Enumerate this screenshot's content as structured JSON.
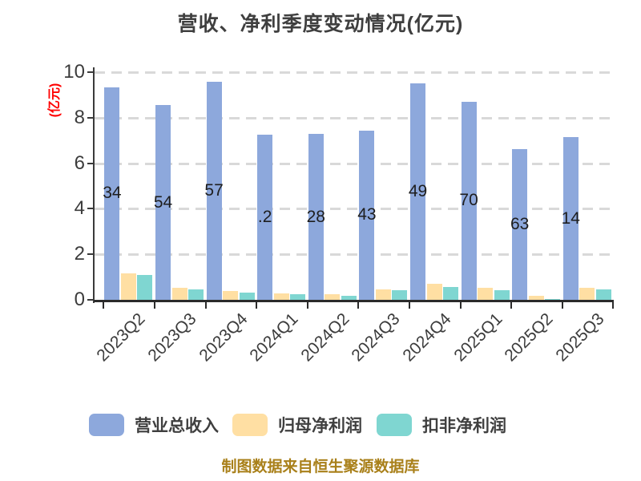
{
  "title": "营收、净利季度变动情况(亿元)",
  "y_axis_unit": "(亿元)",
  "footer": "制图数据来自恒生聚源数据库",
  "colors": {
    "revenue": "#8da8dc",
    "net_profit": "#ffdfa3",
    "non_gaap_profit": "#7fd6d1",
    "grid": "#d9d9d9",
    "axis": "#333333",
    "text": "#3f3f3f",
    "unit_label": "#ff0000",
    "footer_text": "#a9801a"
  },
  "chart_data": {
    "type": "bar",
    "title": "营收、净利季度变动情况(亿元)",
    "ylabel": "(亿元)",
    "categories": [
      "2023Q2",
      "2023Q3",
      "2023Q4",
      "2024Q1",
      "2024Q2",
      "2024Q3",
      "2024Q4",
      "2025Q1",
      "2025Q2",
      "2025Q3"
    ],
    "series": [
      {
        "name": "营业总收入",
        "color": "#8da8dc",
        "values": [
          9.34,
          8.54,
          9.57,
          7.25,
          7.28,
          7.43,
          9.49,
          8.7,
          6.63,
          7.14
        ],
        "bar_label_fragments_visible": [
          "34",
          "54",
          "57",
          ".2",
          "28",
          "43",
          "49",
          "70",
          "63",
          "14"
        ]
      },
      {
        "name": "归母净利润",
        "color": "#ffdfa3",
        "values": [
          1.15,
          0.52,
          0.38,
          0.28,
          0.25,
          0.47,
          0.72,
          0.52,
          0.16,
          0.54
        ]
      },
      {
        "name": "扣非净利润",
        "color": "#7fd6d1",
        "values": [
          1.1,
          0.47,
          0.32,
          0.24,
          0.18,
          0.41,
          0.57,
          0.44,
          0.05,
          0.46
        ]
      }
    ],
    "yticks": [
      0,
      2,
      4,
      6,
      8,
      10
    ],
    "ylim": [
      0,
      10
    ],
    "grid": "horizontal-dashed",
    "legend_position": "bottom"
  },
  "legend": {
    "items": [
      {
        "label": "营业总收入",
        "color": "#8da8dc"
      },
      {
        "label": "归母净利润",
        "color": "#ffdfa3"
      },
      {
        "label": "扣非净利润",
        "color": "#7fd6d1"
      }
    ]
  }
}
